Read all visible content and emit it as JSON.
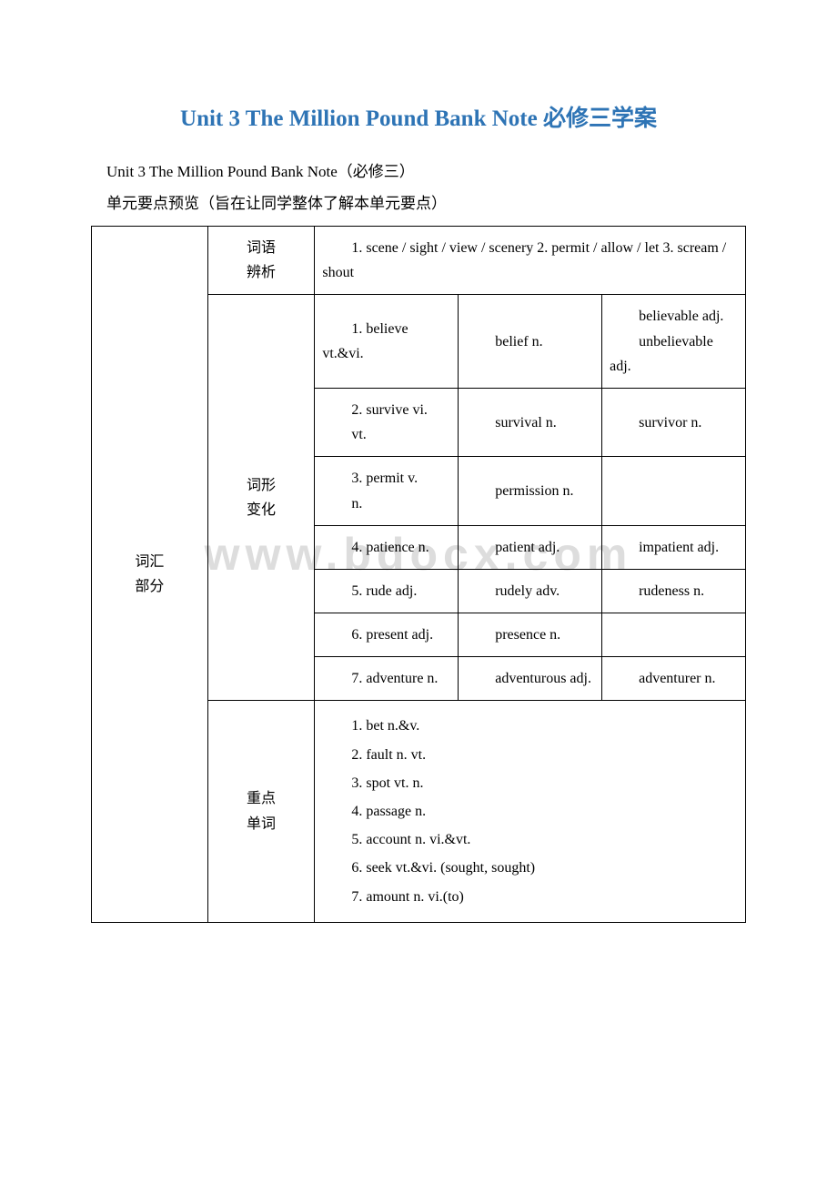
{
  "title": "Unit 3 The Million Pound Bank Note 必修三学案",
  "subtitle": "Unit 3 The Million Pound Bank Note（必修三）",
  "description": "单元要点预览（旨在让同学整体了解本单元要点）",
  "watermark": "www.bdocx.com",
  "colors": {
    "title_color": "#2e74b5",
    "text_color": "#000000",
    "border_color": "#000000",
    "watermark_color": "#dddddd",
    "background": "#ffffff"
  },
  "table": {
    "section_label": "词汇\n部分",
    "row1_label": "词语\n辨析",
    "row1_content": "　　1. scene / sight / view / scenery 2. permit / allow / let 3. scream / shout",
    "row2_label": "词形\n变化",
    "wordforms": [
      {
        "c1": "　　1. believe vt.&vi.",
        "c2": "　　belief n.",
        "c3": "　　believable adj.\n　　unbelievable adj."
      },
      {
        "c1": "　　2. survive vi.\n　　vt.",
        "c2": "　　survival n.",
        "c3": "　　survivor n."
      },
      {
        "c1": "　　3. permit v.\n　　n.",
        "c2": "　　permission n.",
        "c3": ""
      },
      {
        "c1": "　　4. patience n.",
        "c2": "　　patient adj.",
        "c3": "　　impatient adj."
      },
      {
        "c1": "　　5. rude adj.",
        "c2": "　　rudely adv.",
        "c3": "　　rudeness n."
      },
      {
        "c1": "　　6. present adj.",
        "c2": "　　presence n.",
        "c3": ""
      },
      {
        "c1": "　　7. adventure n.",
        "c2": "　　adventurous adj.",
        "c3": "　　adventurer n."
      }
    ],
    "row3_label": "重点\n单词",
    "keywords": [
      "1. bet n.&v.",
      "2. fault n. vt.",
      "3. spot vt. n.",
      "4. passage n.",
      "5. account n. vi.&vt.",
      "6. seek vt.&vi. (sought, sought)",
      "7. amount n. vi.(to)"
    ]
  }
}
